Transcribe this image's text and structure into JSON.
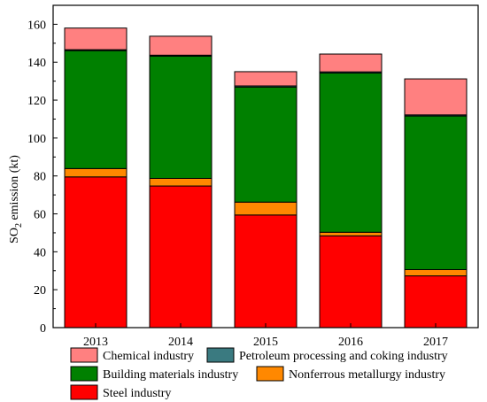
{
  "chart_data": {
    "type": "bar",
    "stacked": true,
    "categories": [
      "2013",
      "2014",
      "2015",
      "2016",
      "2017"
    ],
    "series": [
      {
        "name": "Steel industry",
        "color": "#ff0000",
        "values": [
          79.5,
          74.7,
          59.4,
          48.4,
          27.3
        ]
      },
      {
        "name": "Nonferrous metallurgy industry",
        "color": "#ff8800",
        "values": [
          4.4,
          4.0,
          6.8,
          1.9,
          3.3
        ]
      },
      {
        "name": "Building materials industry",
        "color": "#008000",
        "values": [
          62.2,
          64.5,
          60.7,
          84.0,
          81.0
        ]
      },
      {
        "name": "Petroleum processing and coking industry",
        "color": "#3a7a80",
        "values": [
          0.5,
          0.5,
          0.6,
          0.6,
          0.6
        ]
      },
      {
        "name": "Chemical industry",
        "color": "#ff8080",
        "values": [
          11.4,
          10.0,
          7.5,
          9.4,
          19.0
        ]
      }
    ],
    "ylabel_main": "SO",
    "ylabel_sub": "2",
    "ylabel_rest": " emission (kt)",
    "ylim": [
      0,
      170
    ],
    "yticks": [
      0,
      20,
      40,
      60,
      80,
      100,
      120,
      140,
      160
    ],
    "grid": false,
    "legend_position": "bottom",
    "legend_order": [
      4,
      3,
      2,
      1,
      0
    ]
  }
}
